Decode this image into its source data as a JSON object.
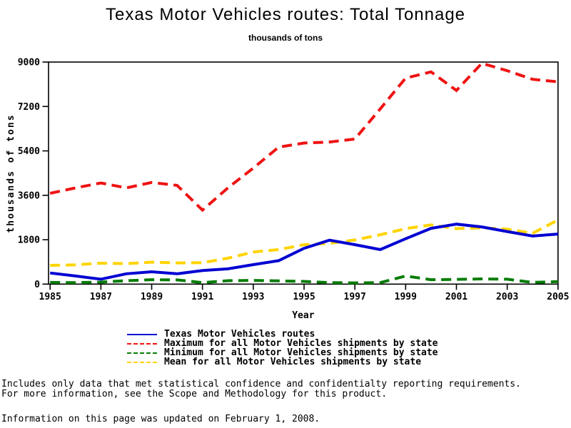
{
  "title": "Texas Motor Vehicles routes: Total Tonnage",
  "subtitle": "thousands of tons",
  "chart_data": {
    "type": "line",
    "x": [
      1985,
      1986,
      1987,
      1988,
      1989,
      1990,
      1991,
      1992,
      1993,
      1994,
      1995,
      1996,
      1997,
      1998,
      1999,
      2000,
      2001,
      2002,
      2003,
      2004,
      2005
    ],
    "series": [
      {
        "name": "Texas Motor Vehicles routes",
        "color": "#0000d2",
        "style": "solid",
        "values": [
          450,
          330,
          200,
          420,
          500,
          420,
          550,
          620,
          790,
          950,
          1450,
          1780,
          1600,
          1400,
          1840,
          2260,
          2430,
          2320,
          2130,
          1950,
          2030
        ]
      },
      {
        "name": "Maximum for all Motor Vehicles shipments by state",
        "color": "#ef1212",
        "style": "dashed",
        "values": [
          3680,
          3900,
          4100,
          3900,
          4120,
          4000,
          3000,
          3900,
          4700,
          5550,
          5720,
          5760,
          5880,
          7100,
          8350,
          8600,
          7850,
          8950,
          8650,
          8300,
          8200
        ]
      },
      {
        "name": "Minimum for all Motor Vehicles shipments by state",
        "color": "#077d07",
        "style": "dashed",
        "values": [
          70,
          60,
          80,
          140,
          180,
          170,
          60,
          140,
          150,
          130,
          110,
          60,
          50,
          60,
          330,
          180,
          190,
          210,
          200,
          70,
          100
        ]
      },
      {
        "name": "Mean for all Motor Vehicles shipments by state",
        "color": "#ffd400",
        "style": "dashed",
        "values": [
          760,
          780,
          850,
          830,
          890,
          860,
          870,
          1050,
          1300,
          1400,
          1600,
          1650,
          1790,
          2000,
          2250,
          2400,
          2250,
          2280,
          2230,
          2060,
          2600
        ]
      }
    ],
    "xlabel": "Year",
    "ylabel": "thousands of tons",
    "ylim": [
      0,
      9000
    ],
    "xlim": [
      1985,
      2005
    ],
    "yticks": [
      "0",
      "1800",
      "3600",
      "5400",
      "7200",
      "9000"
    ],
    "xticks": [
      "1985",
      "1987",
      "1989",
      "1991",
      "1993",
      "1995",
      "1997",
      "1999",
      "2001",
      "2003",
      "2005"
    ],
    "grid": false,
    "legend_position": "bottom-left"
  },
  "footer": {
    "line1": "Includes only data that met statistical confidence and confidentialty reporting requirements.",
    "line2": "For more information, see the Scope and Methodology for this product.",
    "line3": "Information on this page was updated on February 1, 2008."
  }
}
